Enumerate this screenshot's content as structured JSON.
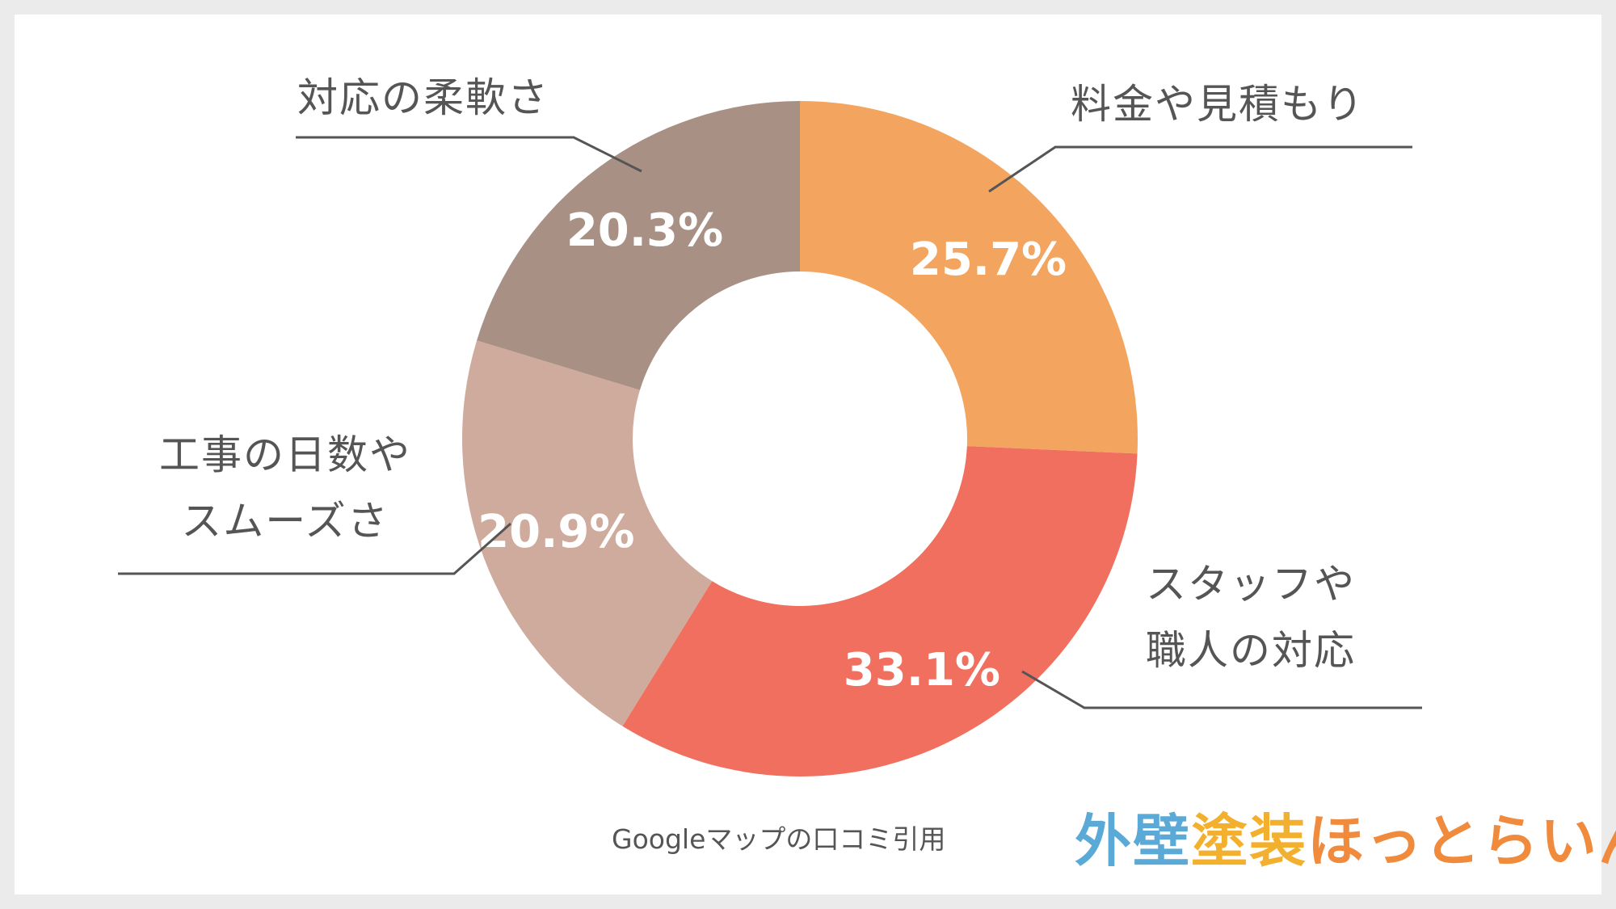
{
  "chart_data": {
    "type": "pie",
    "donut": true,
    "categories": [
      "料金や見積もり",
      "スタッフや\n職人の対応",
      "工事の日数や\nスムーズさ",
      "対応の柔軟さ"
    ],
    "values": [
      25.7,
      33.1,
      20.9,
      20.3
    ],
    "data_labels": [
      "25.7%",
      "33.1%",
      "20.9%",
      "20.3%"
    ],
    "colors": [
      "#f3a45e",
      "#f06f5e",
      "#cfab9d",
      "#a89084"
    ],
    "title": "",
    "xlabel": "",
    "ylabel": ""
  },
  "source_note": "Googleマップの口コミ引用",
  "logo": {
    "part1": "外壁",
    "part2": "塗装",
    "part3": "ほっとらいん"
  }
}
